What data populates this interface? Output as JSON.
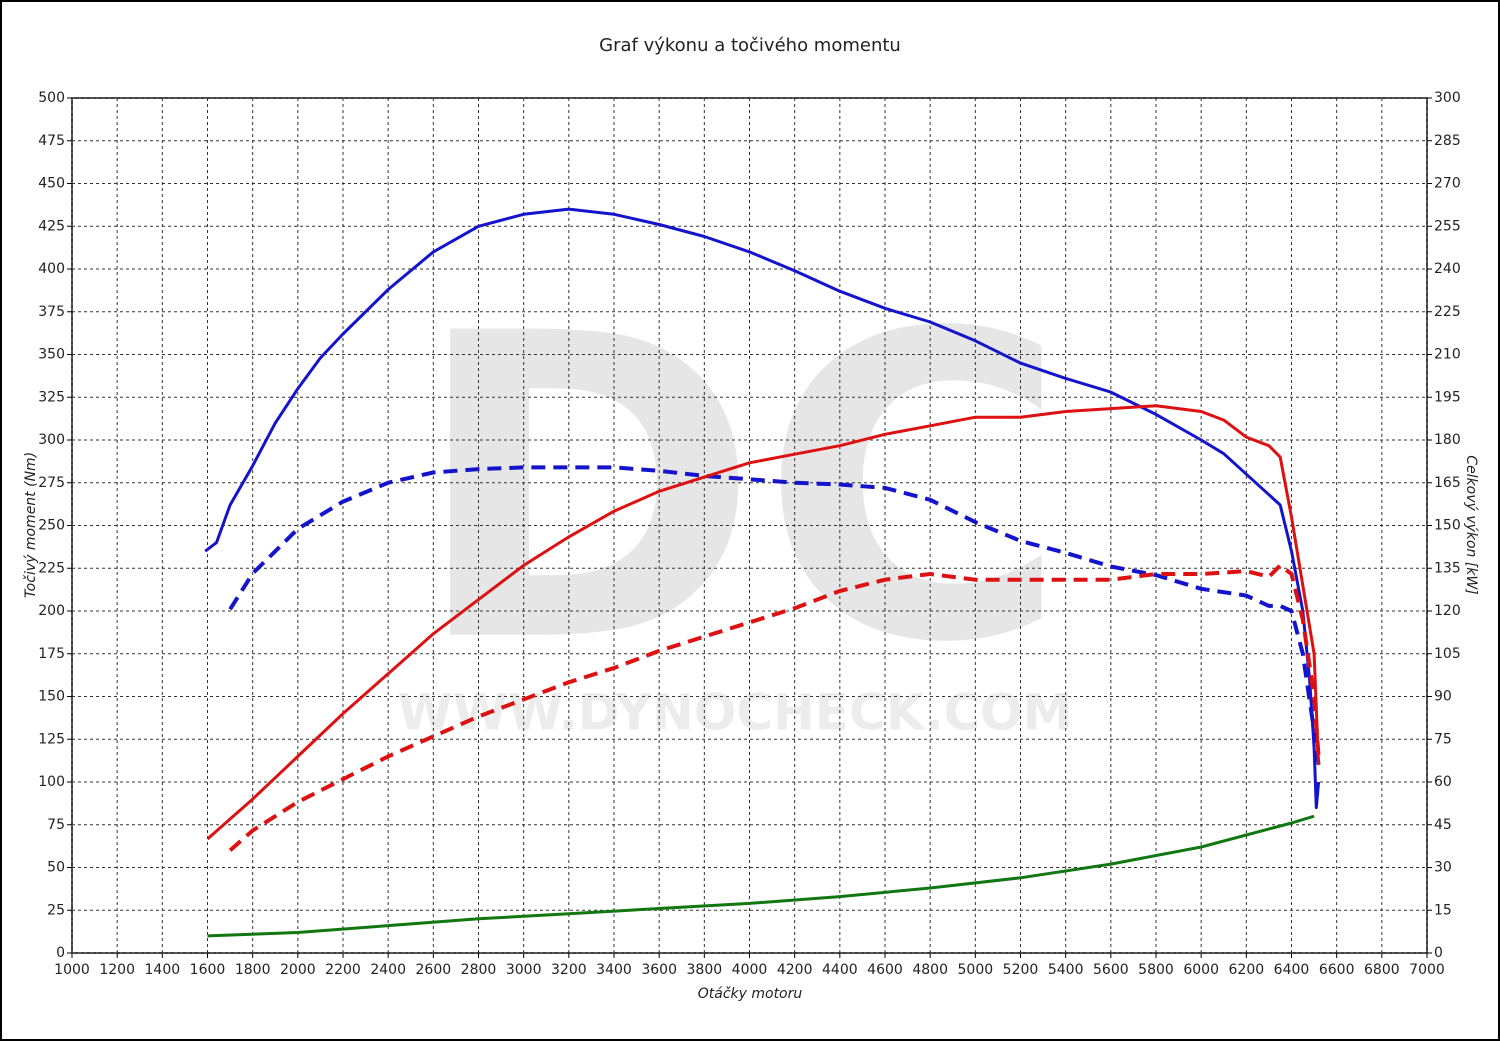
{
  "chart_data": {
    "type": "line",
    "title": "Graf výkonu a točivého momentu",
    "xlabel": "Otáčky motoru",
    "ylabel": "Točivý moment (Nm)",
    "y2label": "Celkový výkon [kW]",
    "watermark": [
      "DC",
      "WWW.DYNOCHECK.COM"
    ],
    "grid": true,
    "xlim": [
      1000,
      7000
    ],
    "xticks": [
      1000,
      1200,
      1400,
      1600,
      1800,
      2000,
      2200,
      2400,
      2600,
      2800,
      3000,
      3200,
      3400,
      3600,
      3800,
      4000,
      4200,
      4400,
      4600,
      4800,
      5000,
      5200,
      5400,
      5600,
      5800,
      6000,
      6200,
      6400,
      6600,
      6800,
      7000
    ],
    "ylim": [
      0,
      500
    ],
    "yticks": [
      0,
      25,
      50,
      75,
      100,
      125,
      150,
      175,
      200,
      225,
      250,
      275,
      300,
      325,
      350,
      375,
      400,
      425,
      450,
      475,
      500
    ],
    "y2lim": [
      0,
      300
    ],
    "y2ticks": [
      0,
      15,
      30,
      45,
      60,
      75,
      90,
      105,
      120,
      135,
      150,
      165,
      180,
      195,
      210,
      225,
      240,
      255,
      270,
      285,
      300
    ],
    "series": [
      {
        "color": "#1414cc",
        "dashed": false,
        "axis": "y",
        "x": [
          1590,
          1640,
          1700,
          1800,
          1900,
          2000,
          2100,
          2200,
          2400,
          2600,
          2800,
          3000,
          3200,
          3400,
          3600,
          3800,
          4000,
          4200,
          4400,
          4600,
          4800,
          5000,
          5200,
          5400,
          5600,
          5800,
          6000,
          6100,
          6200,
          6300,
          6350,
          6400,
          6450,
          6480,
          6500,
          6510,
          6520
        ],
        "values": [
          235,
          240,
          262,
          285,
          310,
          330,
          348,
          362,
          388,
          410,
          425,
          432,
          435,
          432,
          426,
          419,
          410,
          399,
          387,
          377,
          369,
          358,
          345,
          336,
          328,
          315,
          300,
          292,
          280,
          268,
          262,
          235,
          200,
          160,
          120,
          85,
          100
        ]
      },
      {
        "color": "#1414cc",
        "dashed": true,
        "axis": "y",
        "x": [
          1700,
          1800,
          1900,
          2000,
          2200,
          2400,
          2600,
          2800,
          3000,
          3200,
          3400,
          3600,
          3800,
          4000,
          4200,
          4400,
          4600,
          4800,
          5000,
          5200,
          5400,
          5600,
          5800,
          6000,
          6200,
          6300,
          6350,
          6400,
          6450,
          6500,
          6520
        ],
        "values": [
          201,
          222,
          235,
          248,
          264,
          275,
          281,
          283,
          284,
          284,
          284,
          282,
          279,
          277,
          275,
          274,
          272,
          265,
          252,
          241,
          234,
          226,
          221,
          213,
          209,
          203,
          203,
          200,
          175,
          130,
          110
        ]
      },
      {
        "color": "#dd1111",
        "dashed": false,
        "axis": "y2",
        "x": [
          1600,
          1700,
          1800,
          2000,
          2200,
          2400,
          2600,
          2800,
          3000,
          3200,
          3400,
          3600,
          3800,
          4000,
          4200,
          4400,
          4600,
          4800,
          5000,
          5200,
          5400,
          5600,
          5800,
          6000,
          6100,
          6200,
          6300,
          6350,
          6400,
          6450,
          6500,
          6520
        ],
        "values": [
          40,
          47,
          54,
          69,
          84,
          98,
          112,
          124,
          136,
          146,
          155,
          162,
          167,
          172,
          175,
          178,
          182,
          185,
          188,
          188,
          190,
          191,
          192,
          190,
          187,
          181,
          178,
          174,
          153,
          129,
          105,
          66
        ]
      },
      {
        "color": "#dd1111",
        "dashed": true,
        "axis": "y2",
        "x": [
          1700,
          1800,
          2000,
          2200,
          2400,
          2600,
          2800,
          3000,
          3200,
          3400,
          3600,
          3800,
          4000,
          4200,
          4400,
          4600,
          4800,
          5000,
          5200,
          5400,
          5600,
          5800,
          6000,
          6200,
          6300,
          6350,
          6400,
          6450,
          6500,
          6520
        ],
        "values": [
          36,
          43,
          53,
          61,
          69,
          76,
          83,
          89,
          95,
          100,
          106,
          111,
          116,
          121,
          127,
          131,
          133,
          131,
          131,
          131,
          131,
          133,
          133,
          134,
          132,
          136,
          133,
          117,
          90,
          69
        ]
      },
      {
        "color": "#117711",
        "dashed": false,
        "axis": "y",
        "x": [
          1600,
          2000,
          2400,
          2800,
          3200,
          3600,
          4000,
          4400,
          4800,
          5200,
          5600,
          6000,
          6400,
          6500
        ],
        "values": [
          10,
          12,
          16,
          20,
          23,
          26,
          29,
          33,
          38,
          44,
          52,
          62,
          76,
          80
        ]
      }
    ]
  }
}
